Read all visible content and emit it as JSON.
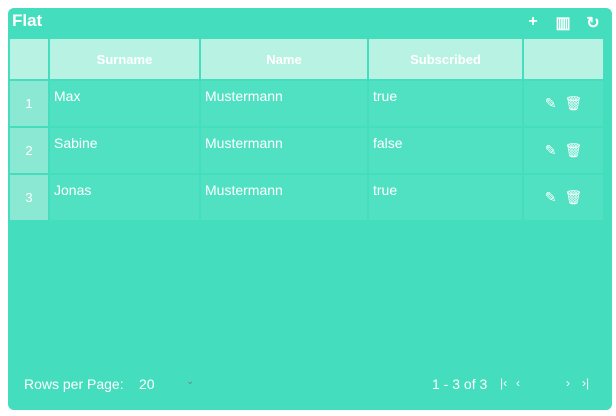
{
  "title": "Flat",
  "toolbar": {
    "add_icon": "+",
    "columns_icon": "▥",
    "refresh_icon": "↻"
  },
  "columns": [
    "",
    "Surname",
    "Name",
    "Subscribed",
    ""
  ],
  "rows": [
    {
      "index": "1",
      "surname": "Max",
      "name": "Mustermann",
      "subscribed": "true"
    },
    {
      "index": "2",
      "surname": "Sabine",
      "name": "Mustermann",
      "subscribed": "false"
    },
    {
      "index": "3",
      "surname": "Jonas",
      "name": "Mustermann",
      "subscribed": "true"
    }
  ],
  "footer": {
    "rows_per_page_label": "Rows per Page:",
    "rows_per_page_value": "20",
    "range": "1 - 3 of 3"
  },
  "colors": {
    "accent": "#44ddbd",
    "header": "#b8f2e3"
  }
}
